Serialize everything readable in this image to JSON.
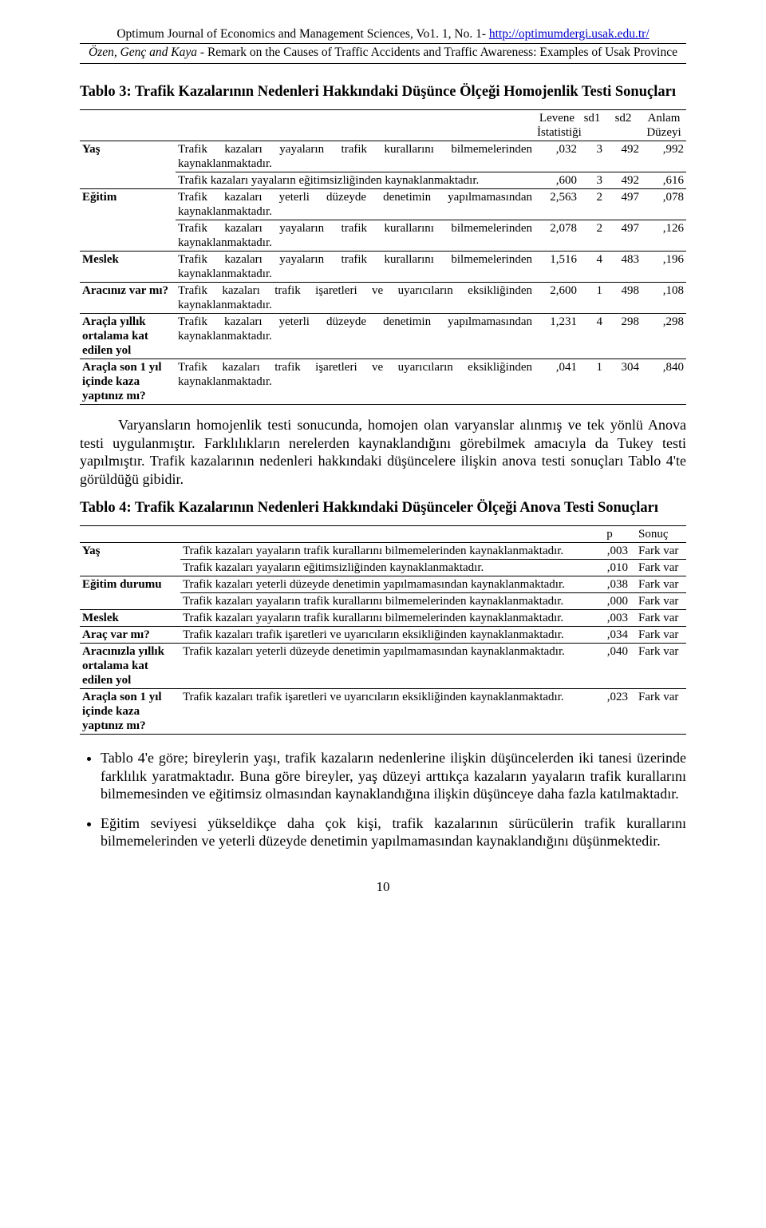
{
  "header": {
    "journal_line_pre": "Optimum Journal of Economics and Management Sciences, Vo1. 1, No. 1- ",
    "journal_url": "http://optimumdergi.usak.edu.tr/",
    "authors_italic": "Özen, Genç and Kaya",
    "authors_rest": " - Remark on the Causes of Traffic Accidents and Traffic Awareness: Examples of Usak Province"
  },
  "table3": {
    "title": "Tablo 3: Trafik Kazalarının Nedenleri Hakkındaki Düşünce Ölçeği Homojenlik Testi Sonuçları",
    "head": {
      "levene_l1": "Levene",
      "levene_l2": "İstatistiği",
      "sd1": "sd1",
      "sd2": "sd2",
      "anlam_l1": "Anlam",
      "anlam_l2": "Düzeyi"
    },
    "groups": [
      {
        "label": "Yaş",
        "rows": [
          {
            "desc": "Trafik kazaları yayaların trafik kurallarını bilmemelerinden kaynaklanmaktadır.",
            "v1": ",032",
            "v2": "3",
            "v3": "492",
            "v4": ",992"
          },
          {
            "desc": "Trafik kazaları yayaların eğitimsizliğinden kaynaklanmaktadır.",
            "v1": ",600",
            "v2": "3",
            "v3": "492",
            "v4": ",616"
          }
        ]
      },
      {
        "label": "Eğitim",
        "rows": [
          {
            "desc": "Trafik kazaları yeterli düzeyde denetimin yapılmamasından kaynaklanmaktadır.",
            "v1": "2,563",
            "v2": "2",
            "v3": "497",
            "v4": ",078"
          },
          {
            "desc": "Trafik kazaları yayaların trafik kurallarını bilmemelerinden kaynaklanmaktadır.",
            "v1": "2,078",
            "v2": "2",
            "v3": "497",
            "v4": ",126"
          }
        ]
      },
      {
        "label": "Meslek",
        "rows": [
          {
            "desc": "Trafik kazaları yayaların trafik kurallarını bilmemelerinden kaynaklanmaktadır.",
            "v1": "1,516",
            "v2": "4",
            "v3": "483",
            "v4": ",196"
          }
        ]
      },
      {
        "label": "Aracınız var mı?",
        "rows": [
          {
            "desc": "Trafik kazaları trafik işaretleri ve uyarıcıların eksikliğinden kaynaklanmaktadır.",
            "v1": "2,600",
            "v2": "1",
            "v3": "498",
            "v4": ",108"
          }
        ]
      },
      {
        "label": "Araçla yıllık ortalama kat edilen yol",
        "rows": [
          {
            "desc": "Trafik kazaları yeterli düzeyde denetimin yapılmamasından kaynaklanmaktadır.",
            "v1": "1,231",
            "v2": "4",
            "v3": "298",
            "v4": ",298"
          }
        ]
      },
      {
        "label": "Araçla son 1 yıl içinde kaza yaptınız mı?",
        "rows": [
          {
            "desc": "Trafik kazaları trafik işaretleri ve uyarıcıların eksikliğinden kaynaklanmaktadır.",
            "v1": ",041",
            "v2": "1",
            "v3": "304",
            "v4": ",840"
          }
        ]
      }
    ]
  },
  "para1": "Varyansların homojenlik testi sonucunda, homojen olan varyanslar alınmış ve tek yönlü Anova testi uygulanmıştır. Farklılıkların nerelerden kaynaklandığını görebilmek amacıyla da Tukey testi yapılmıştır. Trafik kazalarının nedenleri hakkındaki düşüncelere ilişkin anova testi sonuçları Tablo 4'te görüldüğü gibidir.",
  "table4": {
    "title": "Tablo 4: Trafik Kazalarının Nedenleri Hakkındaki Düşünceler Ölçeği Anova Testi Sonuçları",
    "head": {
      "p": "p",
      "sonuc": "Sonuç"
    },
    "groups": [
      {
        "label": "Yaş",
        "rows": [
          {
            "desc": "Trafik kazaları yayaların trafik kurallarını bilmemelerinden kaynaklanmaktadır.",
            "p": ",003",
            "s": "Fark var"
          },
          {
            "desc": "Trafik kazaları yayaların eğitimsizliğinden kaynaklanmaktadır.",
            "p": ",010",
            "s": "Fark var"
          }
        ]
      },
      {
        "label": "Eğitim durumu",
        "rows": [
          {
            "desc": "Trafik kazaları yeterli düzeyde denetimin yapılmamasından kaynaklanmaktadır.",
            "p": ",038",
            "s": "Fark var"
          },
          {
            "desc": "Trafik kazaları yayaların trafik kurallarını bilmemelerinden kaynaklanmaktadır.",
            "p": ",000",
            "s": "Fark var"
          }
        ]
      },
      {
        "label": "Meslek",
        "rows": [
          {
            "desc": "Trafik kazaları yayaların trafik kurallarını bilmemelerinden kaynaklanmaktadır.",
            "p": ",003",
            "s": "Fark var"
          }
        ]
      },
      {
        "label": "Araç var mı?",
        "rows": [
          {
            "desc": "Trafik kazaları trafik işaretleri ve uyarıcıların eksikliğinden kaynaklanmaktadır.",
            "p": ",034",
            "s": "Fark var"
          }
        ]
      },
      {
        "label": "Aracınızla yıllık ortalama kat edilen yol",
        "rows": [
          {
            "desc": "Trafik kazaları yeterli düzeyde denetimin yapılmamasından kaynaklanmaktadır.",
            "p": ",040",
            "s": "Fark var"
          }
        ]
      },
      {
        "label": "Araçla son 1 yıl içinde kaza yaptınız mı?",
        "rows": [
          {
            "desc": "Trafik kazaları trafik işaretleri ve uyarıcıların eksikliğinden kaynaklanmaktadır.",
            "p": ",023",
            "s": "Fark var"
          }
        ]
      }
    ]
  },
  "bullets": [
    "Tablo 4'e göre; bireylerin yaşı, trafik kazaların nedenlerine ilişkin düşüncelerden iki tanesi üzerinde farklılık yaratmaktadır. Buna göre bireyler, yaş düzeyi arttıkça kazaların yayaların trafik kurallarını bilmemesinden ve eğitimsiz olmasından kaynaklandığına ilişkin düşünceye daha fazla katılmaktadır.",
    "Eğitim seviyesi yükseldikçe daha çok kişi, trafik kazalarının sürücülerin trafik kurallarını bilmemelerinden ve yeterli düzeyde denetimin yapılmamasından kaynaklandığını düşünmektedir."
  ],
  "page_number": "10"
}
